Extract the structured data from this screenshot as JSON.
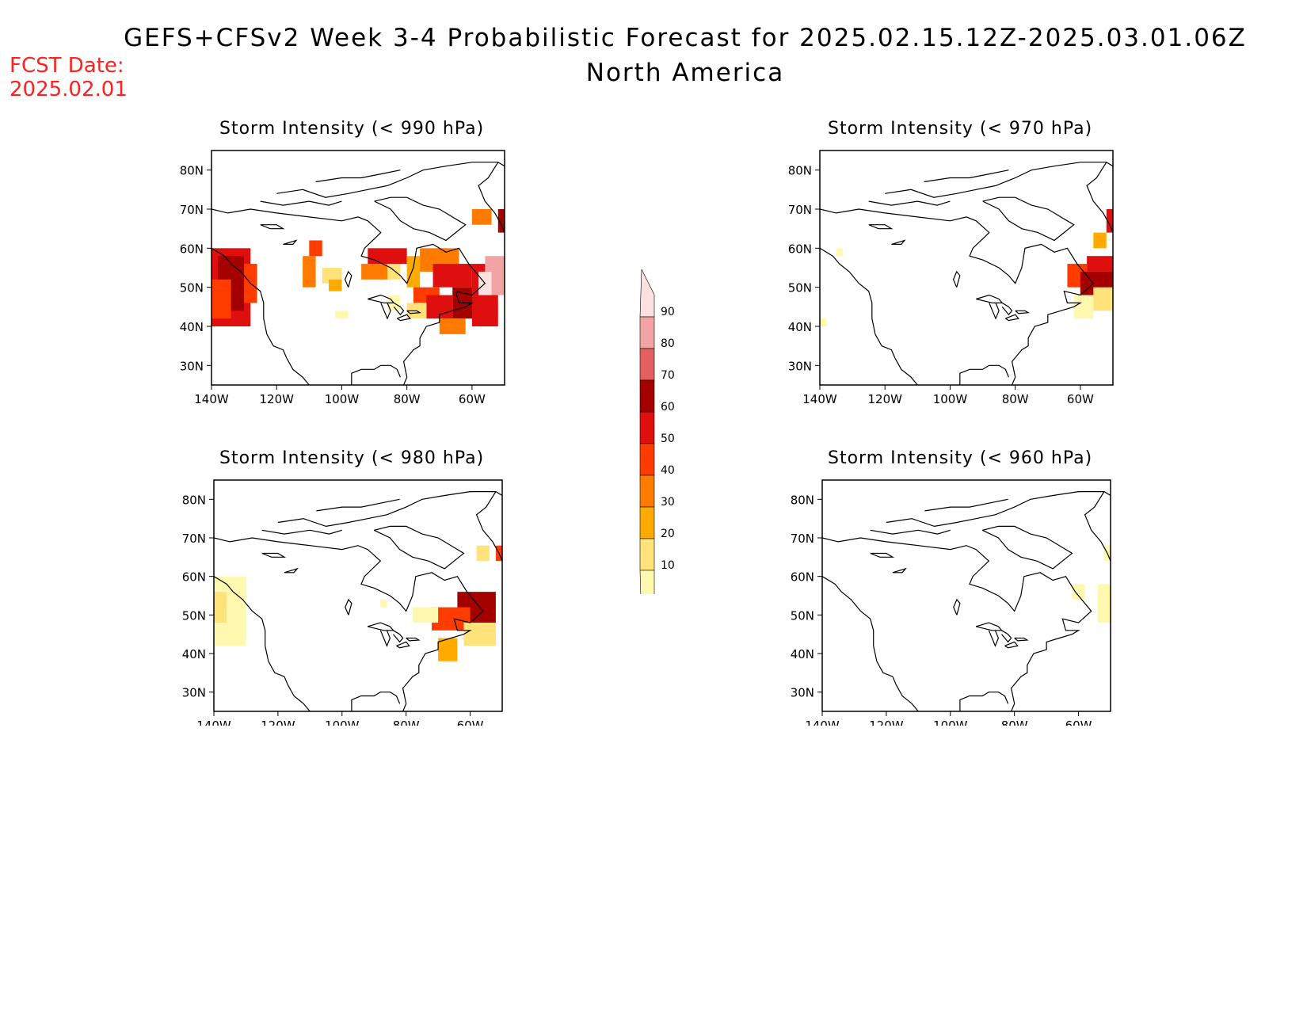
{
  "header": {
    "title": "GEFS+CFSv2 Week 3-4 Probabilistic Forecast for 2025.02.15.12Z-2025.03.01.06Z",
    "region": "North America",
    "fcst_label": "FCST Date:",
    "fcst_date": "2025.02.01"
  },
  "panels": [
    {
      "title": "Storm Intensity (< 990 hPa)"
    },
    {
      "title": "Storm Intensity (< 970 hPa)"
    },
    {
      "title": "Storm Intensity (< 980 hPa)"
    },
    {
      "title": "Storm Intensity (< 960 hPa)"
    }
  ],
  "axes": {
    "lat_ticks": [
      "80N",
      "70N",
      "60N",
      "50N",
      "40N",
      "30N"
    ],
    "lon_ticks": [
      "140W",
      "120W",
      "100W",
      "80W",
      "60W"
    ]
  },
  "colorbar": {
    "levels": [
      "10",
      "20",
      "30",
      "40",
      "50",
      "60",
      "70",
      "80",
      "90"
    ],
    "colors": [
      "#fff9b0",
      "#ffe27a",
      "#ffaa00",
      "#ff7b00",
      "#ff3c00",
      "#e00f0f",
      "#a50000",
      "#e26060",
      "#f2a3a3",
      "#fbe0e0"
    ]
  },
  "chart_data": {
    "type": "heatmap",
    "lon_range": [
      -140,
      -50
    ],
    "lat_range": [
      25,
      85
    ]
  }
}
